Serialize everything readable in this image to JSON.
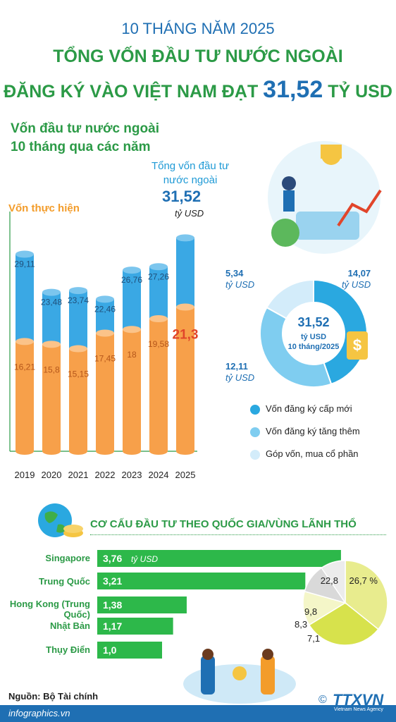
{
  "header": {
    "line1": "10 THÁNG NĂM 2025",
    "line2": "TỔNG VỐN ĐẦU TƯ NƯỚC NGOÀI",
    "line3_prefix": "ĐĂNG KÝ VÀO VIỆT NAM ĐẠT",
    "line3_value": "31,52",
    "line3_unit": "TỶ USD"
  },
  "subtitle": {
    "line1": "Vốn đầu tư nước ngoài",
    "line2": "10 tháng qua các năm"
  },
  "total_label": {
    "line1": "Tổng vốn đầu tư",
    "line2": "nước ngoài",
    "value": "31,52",
    "unit": "tỷ USD"
  },
  "realized_label": "Vốn thực hiện",
  "colors": {
    "blue": "#3aa8e4",
    "orange": "#f7a04a",
    "green": "#2db84a",
    "darkgreen": "#2b9a46",
    "navy": "#1f6fb3",
    "red": "#e1452a"
  },
  "chart_data": [
    {
      "type": "bar",
      "categories": [
        "2019",
        "2020",
        "2021",
        "2022",
        "2023",
        "2024",
        "2025"
      ],
      "series": [
        {
          "name": "Tổng vốn đầu tư nước ngoài",
          "values": [
            29.11,
            23.48,
            23.74,
            22.46,
            26.76,
            27.26,
            31.52
          ],
          "labels": [
            "29,11",
            "23,48",
            "23,74",
            "22,46",
            "26,76",
            "27,26",
            ""
          ]
        },
        {
          "name": "Vốn thực hiện",
          "values": [
            16.21,
            15.8,
            15.15,
            17.45,
            18,
            19.58,
            21.3
          ],
          "labels": [
            "16,21",
            "15,8",
            "15,15",
            "17,45",
            "18",
            "19,58",
            "21,3"
          ]
        }
      ]
    },
    {
      "type": "pie",
      "center_value": "31,52",
      "center_unit": "tỷ USD",
      "center_note": "10 tháng/2025",
      "slices": [
        {
          "name": "Vốn đăng ký cấp mới",
          "value": 14.07,
          "label": "14,07",
          "unit": "tỷ USD",
          "color": "#2aa8e0"
        },
        {
          "name": "Vốn đăng ký tăng thêm",
          "value": 12.11,
          "label": "12,11",
          "unit": "tỷ USD",
          "color": "#7fcdf0"
        },
        {
          "name": "Góp vốn, mua cổ phần",
          "value": 5.34,
          "label": "5,34",
          "unit": "tỷ USD",
          "color": "#d3ecfa"
        }
      ]
    },
    {
      "type": "bar",
      "title": "CƠ CẤU ĐẦU TƯ THEO QUỐC GIA/VÙNG LÃNH THỔ",
      "categories": [
        "Singapore",
        "Trung Quốc",
        "Hong Kong (Trung Quốc)",
        "Nhật Bản",
        "Thụy Điển"
      ],
      "values": [
        3.76,
        3.21,
        1.38,
        1.17,
        1.0
      ],
      "labels": [
        "3,76",
        "3,21",
        "1,38",
        "1,17",
        "1,0"
      ],
      "unit": "tỷ USD"
    },
    {
      "type": "pie",
      "values": [
        26.7,
        22.8,
        9.8,
        8.3,
        7.1
      ],
      "labels": [
        "26,7 %",
        "22,8",
        "9,8",
        "8,3",
        "7,1"
      ]
    }
  ],
  "source": "Nguồn: Bộ Tài chính",
  "site": "infographics.vn",
  "brand": "TTXVN",
  "brand_sub": "Vietnam News Agency",
  "copyright": "©"
}
